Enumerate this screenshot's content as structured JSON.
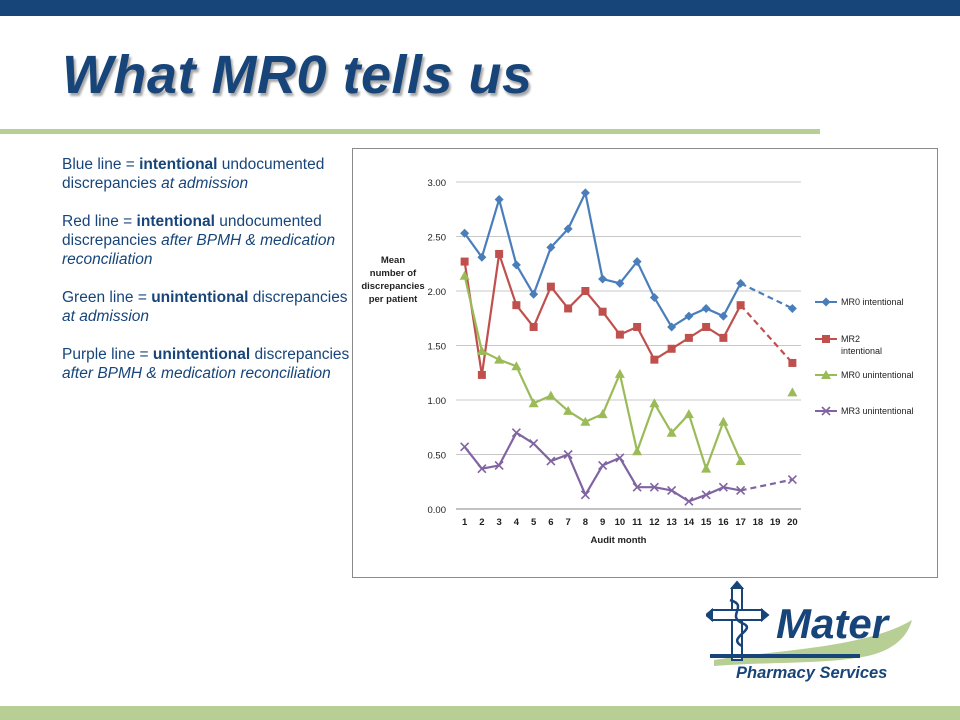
{
  "slide": {
    "title": "What MR0 tells us",
    "bullets": [
      {
        "color_word": "Blue line = ",
        "emph": "intentional",
        "rest": " undocumented discrepancies ",
        "ital": "at admission"
      },
      {
        "color_word": "Red line = ",
        "emph": "intentional",
        "rest": " undocumented discrepancies ",
        "ital": "after BPMH & medication reconciliation"
      },
      {
        "color_word": "Green line = ",
        "emph": "unintentional",
        "rest": " discrepancies ",
        "ital": "at admission"
      },
      {
        "color_word": "Purple line = ",
        "emph": "unintentional",
        "rest": " discrepancies ",
        "ital": "after BPMH & medication reconciliation"
      }
    ],
    "logo": {
      "name": "Mater",
      "subtitle": "Pharmacy Services"
    }
  },
  "colors": {
    "accent": "#17457a",
    "band": "#b7cf94"
  },
  "chart_data": {
    "type": "line",
    "xlabel": "Audit month",
    "ylabel": [
      "Mean",
      "number of",
      "discrepancies",
      "per patient"
    ],
    "x": [
      1,
      2,
      3,
      4,
      5,
      6,
      7,
      8,
      9,
      10,
      11,
      12,
      13,
      14,
      15,
      16,
      17,
      18,
      19,
      20
    ],
    "ylim": [
      0,
      3
    ],
    "yticks": [
      "0.00",
      "0.50",
      "1.00",
      "1.50",
      "2.00",
      "2.50",
      "3.00"
    ],
    "grid": true,
    "legend_position": "right",
    "series": [
      {
        "name": "MR0 intentional",
        "color": "#4a7ebb",
        "marker": "diamond",
        "values": [
          2.53,
          2.31,
          2.84,
          2.24,
          1.97,
          2.4,
          2.57,
          2.9,
          2.11,
          2.07,
          2.27,
          1.94,
          1.67,
          1.77,
          1.84,
          1.77,
          2.07,
          null,
          null,
          1.84
        ],
        "dashed_from": 17
      },
      {
        "name": "MR2 intentional",
        "color": "#c0504d",
        "marker": "square",
        "values": [
          2.27,
          1.23,
          2.34,
          1.87,
          1.67,
          2.04,
          1.84,
          2.0,
          1.81,
          1.6,
          1.67,
          1.37,
          1.47,
          1.57,
          1.67,
          1.57,
          1.87,
          null,
          null,
          1.34
        ],
        "dashed_from": 17
      },
      {
        "name": "MR0 unintentional",
        "color": "#9bbb59",
        "marker": "triangle",
        "values": [
          2.14,
          1.45,
          1.37,
          1.31,
          0.97,
          1.04,
          0.9,
          0.8,
          0.87,
          1.24,
          0.53,
          0.97,
          0.7,
          0.87,
          0.37,
          0.8,
          0.44,
          null,
          null,
          1.07
        ],
        "dashed_from": null
      },
      {
        "name": "MR3 unintentional",
        "color": "#8064a2",
        "marker": "x",
        "values": [
          0.57,
          0.37,
          0.4,
          0.7,
          0.6,
          0.44,
          0.5,
          0.13,
          0.4,
          0.47,
          0.2,
          0.2,
          0.17,
          0.07,
          0.13,
          0.2,
          0.17,
          null,
          null,
          0.27
        ],
        "dashed_from": 17
      }
    ]
  }
}
